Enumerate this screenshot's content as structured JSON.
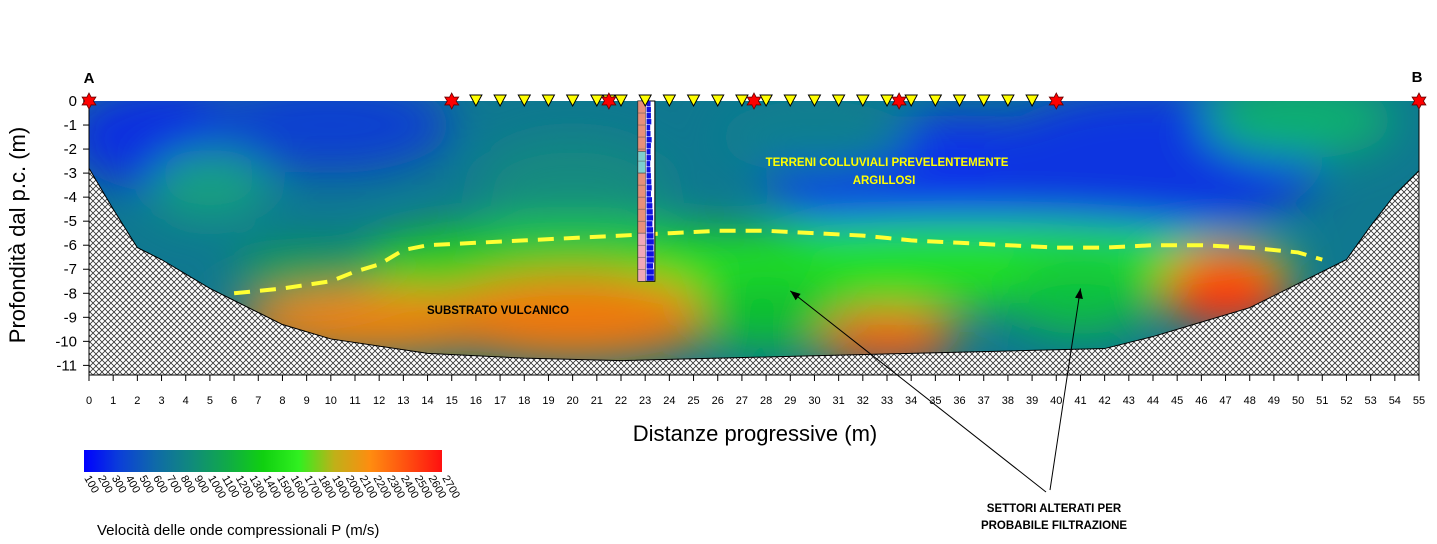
{
  "chart_data": {
    "type": "heatmap",
    "title": "",
    "xlabel": "Distanze progressive (m)",
    "ylabel": "Profondità dal p.c. (m)",
    "xlim": [
      0,
      55
    ],
    "ylim": [
      -11,
      0
    ],
    "x_ticks": [
      0,
      1,
      2,
      3,
      4,
      5,
      6,
      7,
      8,
      9,
      10,
      11,
      12,
      13,
      14,
      15,
      16,
      17,
      18,
      19,
      20,
      21,
      22,
      23,
      24,
      25,
      26,
      27,
      28,
      29,
      30,
      31,
      32,
      33,
      34,
      35,
      36,
      37,
      38,
      39,
      40,
      41,
      42,
      43,
      44,
      45,
      46,
      47,
      48,
      49,
      50,
      51,
      52,
      53,
      54,
      55
    ],
    "y_ticks": [
      0,
      -1,
      -2,
      -3,
      -4,
      -5,
      -6,
      -7,
      -8,
      -9,
      -10,
      -11
    ],
    "section_ends": [
      {
        "label": "A",
        "x": 0
      },
      {
        "label": "B",
        "x": 55
      }
    ],
    "shots_x": [
      0,
      15,
      21.5,
      27.5,
      33.5,
      40,
      55
    ],
    "geophones_x": [
      16,
      17,
      18,
      19,
      20,
      21,
      21.5,
      22,
      23,
      24,
      25,
      26,
      27,
      28,
      29,
      30,
      31,
      32,
      33,
      34,
      35,
      36,
      37,
      38,
      39
    ],
    "borehole_x": [
      22.7,
      23.4
    ],
    "bedrock_surface": [
      [
        0,
        -2.8
      ],
      [
        1,
        -4.5
      ],
      [
        2,
        -6.1
      ],
      [
        3,
        -6.6
      ],
      [
        4,
        -7.2
      ],
      [
        5,
        -7.8
      ],
      [
        6,
        -8.3
      ],
      [
        7,
        -8.8
      ],
      [
        8,
        -9.3
      ],
      [
        9,
        -9.6
      ],
      [
        10,
        -9.9
      ],
      [
        12,
        -10.2
      ],
      [
        14,
        -10.5
      ],
      [
        18,
        -10.7
      ],
      [
        22,
        -10.8
      ],
      [
        26,
        -10.7
      ],
      [
        30,
        -10.6
      ],
      [
        34,
        -10.5
      ],
      [
        38,
        -10.4
      ],
      [
        42,
        -10.3
      ],
      [
        44,
        -9.8
      ],
      [
        46,
        -9.2
      ],
      [
        48,
        -8.6
      ],
      [
        50,
        -7.6
      ],
      [
        52,
        -6.6
      ],
      [
        53,
        -5.2
      ],
      [
        54,
        -3.9
      ],
      [
        55,
        -2.9
      ]
    ],
    "substrate_boundary": [
      [
        6,
        -8.0
      ],
      [
        8,
        -7.8
      ],
      [
        10,
        -7.5
      ],
      [
        11,
        -7.1
      ],
      [
        12,
        -6.8
      ],
      [
        13,
        -6.2
      ],
      [
        14,
        -6.0
      ],
      [
        16,
        -5.9
      ],
      [
        18,
        -5.8
      ],
      [
        20,
        -5.7
      ],
      [
        22,
        -5.6
      ],
      [
        24,
        -5.5
      ],
      [
        26,
        -5.4
      ],
      [
        28,
        -5.4
      ],
      [
        30,
        -5.5
      ],
      [
        32,
        -5.6
      ],
      [
        34,
        -5.8
      ],
      [
        36,
        -5.9
      ],
      [
        38,
        -6.0
      ],
      [
        40,
        -6.1
      ],
      [
        42,
        -6.1
      ],
      [
        44,
        -6.0
      ],
      [
        46,
        -6.0
      ],
      [
        48,
        -6.1
      ],
      [
        50,
        -6.3
      ],
      [
        51,
        -6.6
      ]
    ],
    "colorbar": {
      "label": "Velocità delle onde compressionali P (m/s)",
      "ticks": [
        "100",
        "200",
        "300",
        "400",
        "500",
        "600",
        "700",
        "800",
        "900",
        "1000",
        "1100",
        "1200",
        "1300",
        "1400",
        "1500",
        "1600",
        "1700",
        "1800",
        "1900",
        "2000",
        "2100",
        "2200",
        "2300",
        "2400",
        "2500",
        "2600",
        "2700"
      ],
      "colors": [
        "#0000ff",
        "#0b3fd8",
        "#0f6aa8",
        "#108a7c",
        "#10aa48",
        "#10d010",
        "#30f020",
        "#c0b018",
        "#ff8c10",
        "#ff5010",
        "#ff1010"
      ]
    },
    "annotations": {
      "upper_unit_line1": "TERRENI COLLUVIALI PREVELENTEMENTE",
      "upper_unit_line2": "ARGILLOSI",
      "lower_unit": "SUBSTRATO VULCANICO",
      "altered_line1": "SETTORI ALTERATI PER",
      "altered_line2": "PROBABILE FILTRAZIONE"
    },
    "arrow_targets": [
      {
        "x": 29,
        "y": -7.9
      },
      {
        "x": 41,
        "y": -7.8
      }
    ],
    "colors": {
      "annotation_yellow": "#ffff00",
      "boundary_yellow": "#ffff33",
      "shot": "#ff0000",
      "geophone": "#ffff00"
    }
  }
}
